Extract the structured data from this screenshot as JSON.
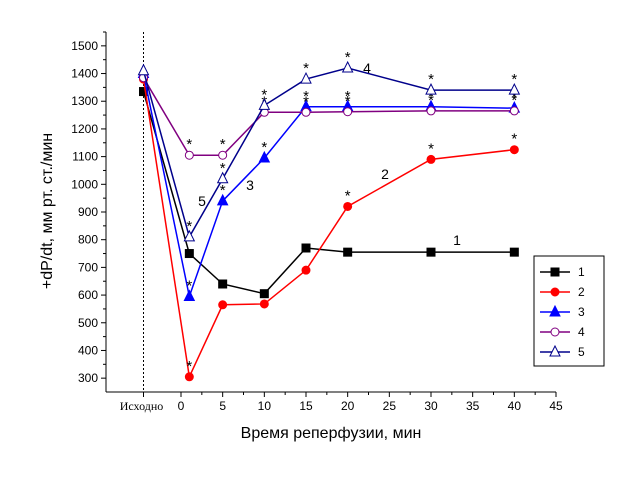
{
  "chart_data": {
    "type": "line",
    "title": "",
    "xlabel": "Время реперфузии, мин",
    "ylabel": "+dP/dt, мм рт. ст./мин",
    "origin_label": "Исходно",
    "xlim": [
      -9,
      45
    ],
    "ylim": [
      250,
      1550
    ],
    "x_ticks": [
      "0",
      "5",
      "10",
      "15",
      "20",
      "25",
      "30",
      "35",
      "40",
      "45"
    ],
    "y_ticks": [
      "300",
      "400",
      "500",
      "600",
      "700",
      "800",
      "900",
      "1000",
      "1100",
      "1200",
      "1300",
      "1400",
      "1500"
    ],
    "grid": false,
    "legend_placement": "right",
    "series": [
      {
        "name": "1",
        "color": "#000000",
        "marker": "square-filled",
        "points": [
          [
            -4.5,
            1335
          ],
          [
            1,
            750
          ],
          [
            5,
            640
          ],
          [
            10,
            605
          ],
          [
            15,
            770
          ],
          [
            20,
            755
          ],
          [
            30,
            755
          ],
          [
            40,
            755
          ]
        ],
        "stars": [],
        "curve_label": "1"
      },
      {
        "name": "2",
        "color": "#ff0000",
        "marker": "circle-filled",
        "points": [
          [
            -4.5,
            1380
          ],
          [
            1,
            305
          ],
          [
            5,
            565
          ],
          [
            10,
            568
          ],
          [
            15,
            690
          ],
          [
            20,
            920
          ],
          [
            30,
            1090
          ],
          [
            40,
            1125
          ]
        ],
        "stars": [
          1,
          20,
          30,
          40
        ],
        "curve_label": "2"
      },
      {
        "name": "3",
        "color": "#0000ff",
        "marker": "triangle-filled",
        "points": [
          [
            -4.5,
            1400
          ],
          [
            1,
            595
          ],
          [
            5,
            940
          ],
          [
            10,
            1095
          ],
          [
            15,
            1280
          ],
          [
            20,
            1280
          ],
          [
            30,
            1280
          ],
          [
            40,
            1275
          ]
        ],
        "stars": [
          1,
          5,
          10,
          15,
          20,
          30,
          40
        ],
        "curve_label": "3"
      },
      {
        "name": "4",
        "color": "#800080",
        "marker": "circle-open",
        "points": [
          [
            -4.5,
            1385
          ],
          [
            1,
            1105
          ],
          [
            5,
            1105
          ],
          [
            10,
            1260
          ],
          [
            15,
            1260
          ],
          [
            20,
            1262
          ],
          [
            30,
            1265
          ],
          [
            40,
            1265
          ]
        ],
        "stars": [
          1,
          5,
          10,
          15,
          20,
          30,
          40
        ],
        "curve_label": "4"
      },
      {
        "name": "5",
        "color": "#00008b",
        "marker": "triangle-open",
        "points": [
          [
            -4.5,
            1410
          ],
          [
            1,
            810
          ],
          [
            5,
            1020
          ],
          [
            10,
            1285
          ],
          [
            15,
            1380
          ],
          [
            20,
            1420
          ],
          [
            30,
            1340
          ],
          [
            40,
            1340
          ]
        ],
        "stars": [
          1,
          5,
          10,
          15,
          20,
          30,
          40
        ],
        "curve_label": "5"
      }
    ]
  }
}
